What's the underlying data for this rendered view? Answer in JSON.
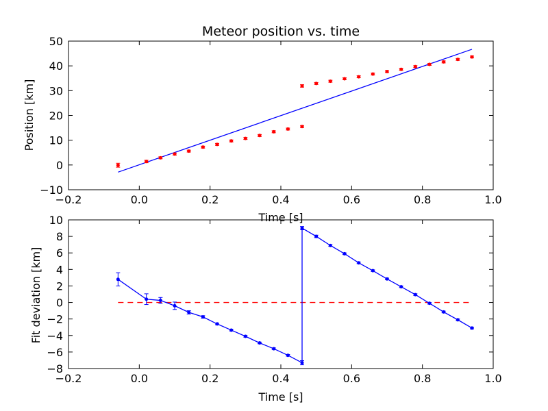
{
  "chart_data": [
    {
      "type": "scatter",
      "title": "Meteor position vs. time",
      "xlabel": "Time [s]",
      "ylabel": "Position [km]",
      "xlim": [
        -0.2,
        1.0
      ],
      "ylim": [
        -10,
        50
      ],
      "xticks": [
        "−0.2",
        "0.0",
        "0.2",
        "0.4",
        "0.6",
        "0.8",
        "1.0"
      ],
      "yticks": [
        "−10",
        "0",
        "10",
        "20",
        "30",
        "40",
        "50"
      ],
      "grid": false,
      "colors": {
        "points": "#ff0000",
        "fit": "#0000ff"
      },
      "series": [
        {
          "kind": "errorbar-points",
          "x": [
            -0.06,
            0.02,
            0.06,
            0.1,
            0.14,
            0.18,
            0.22,
            0.26,
            0.3,
            0.34,
            0.38,
            0.42,
            0.46,
            0.46,
            0.5,
            0.54,
            0.58,
            0.62,
            0.66,
            0.7,
            0.74,
            0.78,
            0.82,
            0.86,
            0.9,
            0.94
          ],
          "y": [
            -0.1,
            1.4,
            2.9,
            4.4,
            5.6,
            7.2,
            8.3,
            9.7,
            10.7,
            11.9,
            13.4,
            14.5,
            15.5,
            31.9,
            32.9,
            33.8,
            34.8,
            35.6,
            36.7,
            37.7,
            38.6,
            39.7,
            40.6,
            41.6,
            42.6,
            43.6
          ],
          "yerr": [
            0.8,
            0.5,
            0.4,
            0.4,
            0.4,
            0.4,
            0.4,
            0.4,
            0.4,
            0.4,
            0.4,
            0.4,
            0.4,
            0.5,
            0.4,
            0.4,
            0.4,
            0.4,
            0.4,
            0.4,
            0.4,
            0.4,
            0.4,
            0.4,
            0.4,
            0.4
          ]
        },
        {
          "kind": "fit-line",
          "x": [
            -0.06,
            0.94
          ],
          "y": [
            -2.9,
            46.7
          ]
        }
      ]
    },
    {
      "type": "line",
      "title": "",
      "xlabel": "Time [s]",
      "ylabel": "Fit deviation [km]",
      "xlim": [
        -0.2,
        1.0
      ],
      "ylim": [
        -8,
        10
      ],
      "xticks": [
        "−0.2",
        "0.0",
        "0.2",
        "0.4",
        "0.6",
        "0.8",
        "1.0"
      ],
      "yticks": [
        "−8",
        "−6",
        "−4",
        "−2",
        "0",
        "2",
        "4",
        "6",
        "8",
        "10"
      ],
      "grid": false,
      "colors": {
        "deviation": "#0000ff",
        "zero_line": "#ff0000"
      },
      "series": [
        {
          "kind": "errorbar-line",
          "x": [
            -0.06,
            0.02,
            0.06,
            0.1,
            0.14,
            0.18,
            0.22,
            0.26,
            0.3,
            0.34,
            0.38,
            0.42,
            0.46,
            0.46,
            0.5,
            0.54,
            0.58,
            0.62,
            0.66,
            0.7,
            0.74,
            0.78,
            0.82,
            0.86,
            0.9,
            0.94
          ],
          "y": [
            2.8,
            0.4,
            0.25,
            -0.4,
            -1.2,
            -1.75,
            -2.6,
            -3.35,
            -4.1,
            -4.9,
            -5.6,
            -6.4,
            -7.3,
            9.0,
            8.0,
            6.9,
            5.9,
            4.8,
            3.85,
            2.85,
            1.9,
            0.95,
            -0.1,
            -1.15,
            -2.1,
            -3.1
          ],
          "yerr": [
            0.8,
            0.65,
            0.35,
            0.45,
            0.2,
            0.15,
            0.1,
            0.1,
            0.1,
            0.1,
            0.1,
            0.1,
            0.25,
            0.2,
            0.15,
            0.1,
            0.1,
            0.1,
            0.1,
            0.1,
            0.1,
            0.1,
            0.1,
            0.1,
            0.1,
            0.1
          ]
        },
        {
          "kind": "zero-line-dashed",
          "x": [
            -0.06,
            0.94
          ],
          "y": [
            0,
            0
          ]
        }
      ]
    }
  ]
}
